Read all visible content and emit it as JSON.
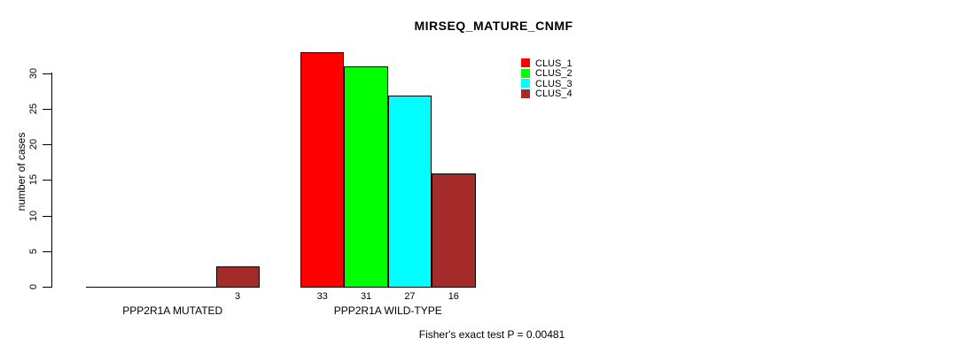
{
  "chart_data": {
    "type": "bar",
    "title": "MIRSEQ_MATURE_CNMF",
    "ylabel": "number of cases",
    "xlabel": "",
    "ylim": [
      0,
      33
    ],
    "yticks": [
      0,
      5,
      10,
      15,
      20,
      25,
      30
    ],
    "categories": [
      "PPP2R1A MUTATED",
      "PPP2R1A WILD-TYPE"
    ],
    "series": [
      {
        "name": "CLUS_1",
        "color": "#FF0000",
        "values": [
          0,
          33
        ]
      },
      {
        "name": "CLUS_2",
        "color": "#00FF00",
        "values": [
          0,
          31
        ]
      },
      {
        "name": "CLUS_3",
        "color": "#00FFFF",
        "values": [
          0,
          27
        ]
      },
      {
        "name": "CLUS_4",
        "color": "#A52A2A",
        "values": [
          3,
          16
        ]
      }
    ],
    "bar_value_labels_shown": true,
    "annotation": "Fisher's exact test P = 0.00481",
    "legend_position": "top-right",
    "grid": false,
    "background": "#FFFFFF",
    "bar_border_color": "#000000",
    "text_color": "#000000"
  }
}
